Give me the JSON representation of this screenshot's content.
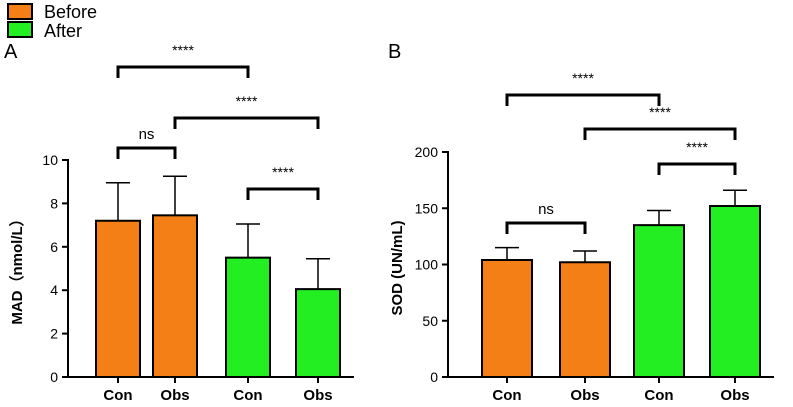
{
  "legend": {
    "position": "top-left",
    "items": [
      {
        "label": "Before",
        "color": "#F57F17"
      },
      {
        "label": "After",
        "color": "#22EE22"
      }
    ]
  },
  "colors": {
    "before": "#F57F17",
    "after": "#22EE22",
    "stroke": "#000000"
  },
  "chart_data": [
    {
      "type": "bar",
      "panel_label": "A",
      "ylabel": "MAD（nmol/L）",
      "xlabel": "",
      "ylim": [
        0,
        10
      ],
      "yticks": [
        0,
        2,
        4,
        6,
        8,
        10
      ],
      "categories": [
        "Con",
        "Obs",
        "Con",
        "Obs"
      ],
      "groups": [
        "Before",
        "Before",
        "After",
        "After"
      ],
      "values": [
        7.2,
        7.45,
        5.5,
        4.05
      ],
      "errors": [
        1.75,
        1.8,
        1.55,
        1.4
      ],
      "significance": [
        {
          "from": 0,
          "to": 1,
          "label": "ns"
        },
        {
          "from": 2,
          "to": 3,
          "label": "****"
        },
        {
          "from": 1,
          "to": 3,
          "label": "****"
        },
        {
          "from": 0,
          "to": 2,
          "label": "****"
        }
      ]
    },
    {
      "type": "bar",
      "panel_label": "B",
      "ylabel": "SOD (UN/mL)",
      "xlabel": "",
      "ylim": [
        0,
        200
      ],
      "yticks": [
        0,
        50,
        100,
        150,
        200
      ],
      "categories": [
        "Con",
        "Obs",
        "Con",
        "Obs"
      ],
      "groups": [
        "Before",
        "Before",
        "After",
        "After"
      ],
      "values": [
        104,
        102,
        135,
        152
      ],
      "errors": [
        11,
        10,
        13,
        14
      ],
      "significance": [
        {
          "from": 0,
          "to": 1,
          "label": "ns"
        },
        {
          "from": 2,
          "to": 3,
          "label": "****"
        },
        {
          "from": 1,
          "to": 3,
          "label": "****"
        },
        {
          "from": 0,
          "to": 2,
          "label": "****"
        }
      ]
    }
  ]
}
